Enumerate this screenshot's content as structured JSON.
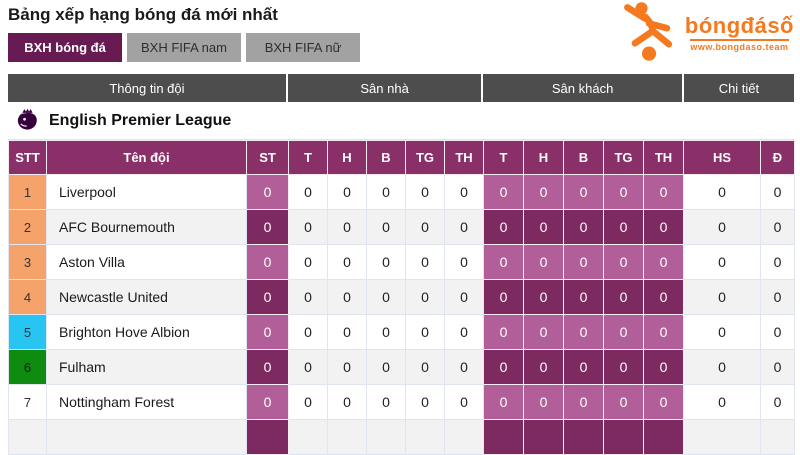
{
  "page": {
    "title": "Bảng xếp hạng bóng đá mới nhất"
  },
  "logo": {
    "text": "bóngđásố",
    "subtext": "www.bongdaso.team",
    "color": "#f4791f"
  },
  "tabs": [
    {
      "label": "BXH bóng đá",
      "active": true
    },
    {
      "label": "BXH FIFA nam",
      "active": false
    },
    {
      "label": "BXH FIFA nữ",
      "active": false
    }
  ],
  "section_bands": [
    "Thông tin đội",
    "Sân nhà",
    "Sân khách",
    "Chi tiết"
  ],
  "league": {
    "name": "English Premier League"
  },
  "colors": {
    "tab_active": "#671b52",
    "band_gray": "#4d4d4d",
    "header_purple": "#8a3069",
    "cell_purple_light": "#b25f99",
    "cell_purple_dark": "#7c2a5f",
    "rank_orange": "#f5a36b",
    "rank_blue": "#29c5f2",
    "rank_green": "#0f8b0f",
    "logo_orange": "#f4791f",
    "premier_league_purple": "#37003c"
  },
  "table": {
    "columns": [
      "STT",
      "Tên đội",
      "ST",
      "T",
      "H",
      "B",
      "TG",
      "TH",
      "T",
      "H",
      "B",
      "TG",
      "TH",
      "HS",
      "Đ"
    ],
    "rows": [
      {
        "rank": "1",
        "rank_color": "orange",
        "team": "Liverpool",
        "values": [
          "0",
          "0",
          "0",
          "0",
          "0",
          "0",
          "0",
          "0",
          "0",
          "0",
          "0",
          "0",
          "0"
        ]
      },
      {
        "rank": "2",
        "rank_color": "orange",
        "team": "AFC Bournemouth",
        "values": [
          "0",
          "0",
          "0",
          "0",
          "0",
          "0",
          "0",
          "0",
          "0",
          "0",
          "0",
          "0",
          "0"
        ]
      },
      {
        "rank": "3",
        "rank_color": "orange",
        "team": "Aston Villa",
        "values": [
          "0",
          "0",
          "0",
          "0",
          "0",
          "0",
          "0",
          "0",
          "0",
          "0",
          "0",
          "0",
          "0"
        ]
      },
      {
        "rank": "4",
        "rank_color": "orange",
        "team": "Newcastle United",
        "values": [
          "0",
          "0",
          "0",
          "0",
          "0",
          "0",
          "0",
          "0",
          "0",
          "0",
          "0",
          "0",
          "0"
        ]
      },
      {
        "rank": "5",
        "rank_color": "blue",
        "team": "Brighton Hove Albion",
        "values": [
          "0",
          "0",
          "0",
          "0",
          "0",
          "0",
          "0",
          "0",
          "0",
          "0",
          "0",
          "0",
          "0"
        ]
      },
      {
        "rank": "6",
        "rank_color": "green",
        "team": "Fulham",
        "values": [
          "0",
          "0",
          "0",
          "0",
          "0",
          "0",
          "0",
          "0",
          "0",
          "0",
          "0",
          "0",
          "0"
        ]
      },
      {
        "rank": "7",
        "rank_color": "none",
        "team": "Nottingham Forest",
        "values": [
          "0",
          "0",
          "0",
          "0",
          "0",
          "0",
          "0",
          "0",
          "0",
          "0",
          "0",
          "0",
          "0"
        ]
      },
      {
        "rank": "",
        "rank_color": "none",
        "team": "",
        "values": [
          "",
          "",
          "",
          "",
          "",
          "",
          "",
          "",
          "",
          "",
          "",
          "",
          ""
        ]
      }
    ]
  }
}
